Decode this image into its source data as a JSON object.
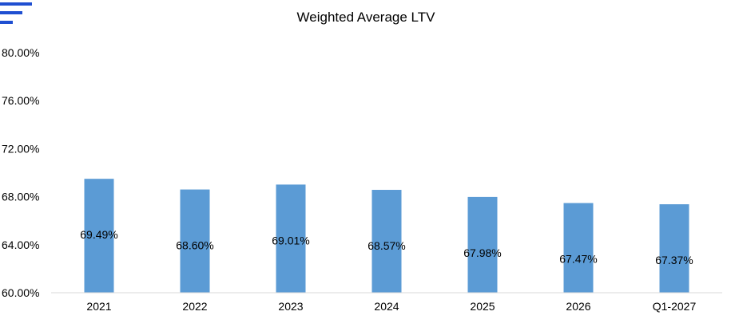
{
  "colors": {
    "bar": "#5b9bd5",
    "logo": "#1f4fd1",
    "axis": "#d9d9d9",
    "text": "#000000"
  },
  "logo": {
    "icon": "menu-lines-icon"
  },
  "chart_data": {
    "type": "bar",
    "title": "Weighted Average LTV",
    "xlabel": "",
    "ylabel": "",
    "categories": [
      "2021",
      "2022",
      "2023",
      "2024",
      "2025",
      "2026",
      "Q1-2027"
    ],
    "values": [
      69.49,
      68.6,
      69.01,
      68.57,
      67.98,
      67.47,
      67.37
    ],
    "data_labels": [
      "69.49%",
      "68.60%",
      "69.01%",
      "68.57%",
      "67.98%",
      "67.47%",
      "67.37%"
    ],
    "ylim": [
      60,
      80
    ],
    "yticks": [
      60,
      64,
      68,
      72,
      76,
      80
    ],
    "ytick_labels": [
      "60.00%",
      "64.00%",
      "68.00%",
      "72.00%",
      "76.00%",
      "80.00%"
    ],
    "grid": false,
    "legend": "none"
  }
}
